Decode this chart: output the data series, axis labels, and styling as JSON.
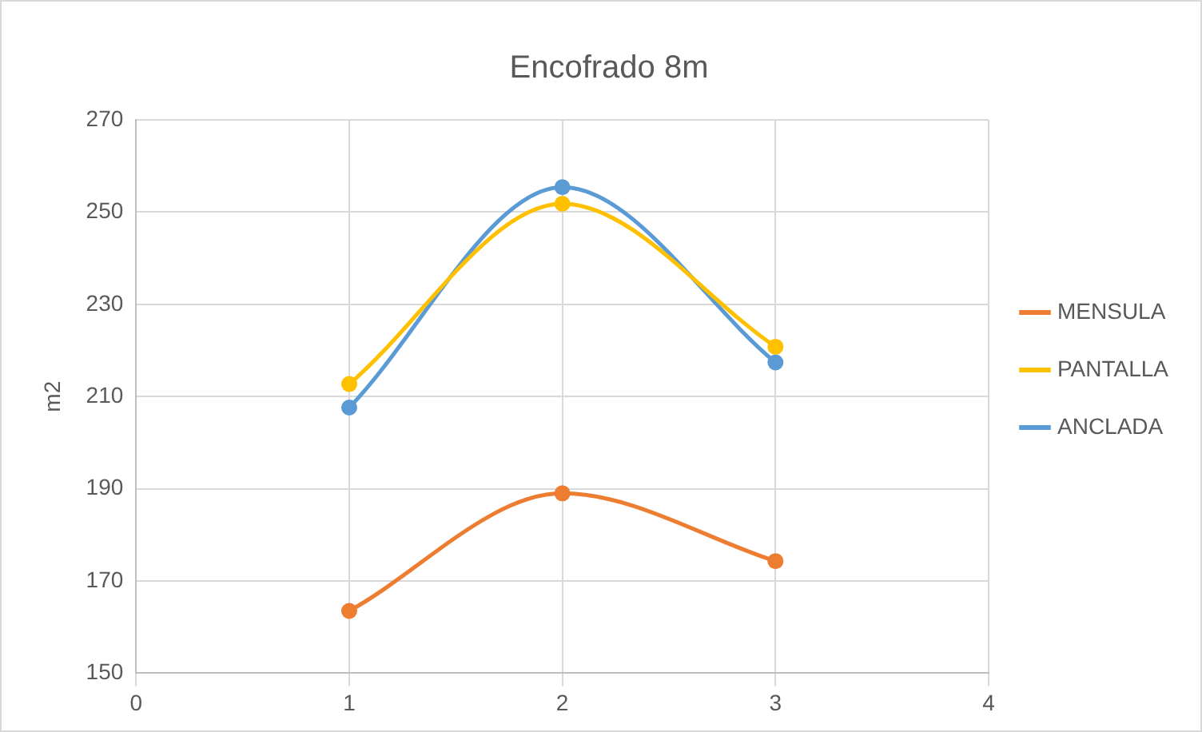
{
  "chart_data": {
    "type": "line",
    "title": "Encofrado 8m",
    "ylabel": "m2",
    "x": [
      1,
      2,
      3
    ],
    "series": [
      {
        "name": "MENSULA",
        "color": "#ed7d31",
        "values": [
          163.5,
          189,
          174.3
        ]
      },
      {
        "name": "PANTALLA",
        "color": "#ffc000",
        "values": [
          212.7,
          251.8,
          220.8
        ]
      },
      {
        "name": "ANCLADA",
        "color": "#5b9bd5",
        "values": [
          207.6,
          255.4,
          217.4
        ]
      }
    ],
    "xlim": [
      0,
      4
    ],
    "xticks": [
      0,
      1,
      2,
      3,
      4
    ],
    "ylim": [
      150,
      270
    ],
    "yticks": [
      150,
      170,
      190,
      210,
      230,
      250,
      270
    ],
    "grid": true,
    "legend": "right",
    "marker": "circle",
    "line_style": "solid"
  }
}
